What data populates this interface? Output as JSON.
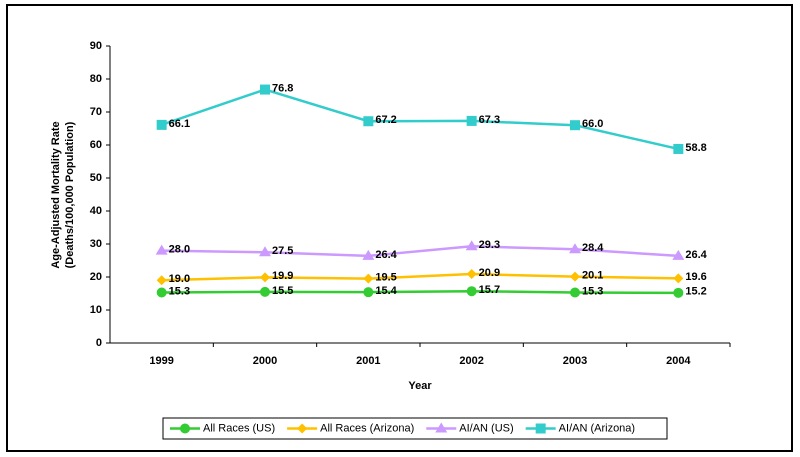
{
  "chart_data": {
    "type": "line",
    "ylabel": [
      "Age-Adjusted Mortality Rate",
      "(Deaths/100,000 Population)"
    ],
    "xlabel": "Year",
    "categories": [
      "1999",
      "2000",
      "2001",
      "2002",
      "2003",
      "2004"
    ],
    "ylim": [
      0,
      90
    ],
    "yticks": [
      0,
      10,
      20,
      30,
      40,
      50,
      60,
      70,
      80,
      90
    ],
    "series": [
      {
        "name": "All Races (US)",
        "color": "#33cc33",
        "marker": "circle",
        "values": [
          15.3,
          15.5,
          15.4,
          15.7,
          15.3,
          15.2
        ],
        "value_labels": [
          "15.3",
          "15.5",
          "15.4",
          "15.7",
          "15.3",
          "15.2"
        ]
      },
      {
        "name": "All Races (Arizona)",
        "color": "#ffc000",
        "marker": "diamond",
        "values": [
          19.0,
          19.9,
          19.5,
          20.9,
          20.1,
          19.6
        ],
        "value_labels": [
          "19.0",
          "19.9",
          "19.5",
          "20.9",
          "20.1",
          "19.6"
        ]
      },
      {
        "name": "AI/AN (US)",
        "color": "#cc99ff",
        "marker": "triangle",
        "values": [
          28.0,
          27.5,
          26.4,
          29.3,
          28.4,
          26.4
        ],
        "value_labels": [
          "28.0",
          "27.5",
          "26.4",
          "29.3",
          "28.4",
          "26.4"
        ]
      },
      {
        "name": "AI/AN (Arizona)",
        "color": "#33cccc",
        "marker": "square",
        "values": [
          66.1,
          76.8,
          67.2,
          67.3,
          66.0,
          58.8
        ],
        "value_labels": [
          "66.1",
          "76.8",
          "67.2",
          "67.3",
          "66.0",
          "58.8"
        ]
      }
    ]
  }
}
